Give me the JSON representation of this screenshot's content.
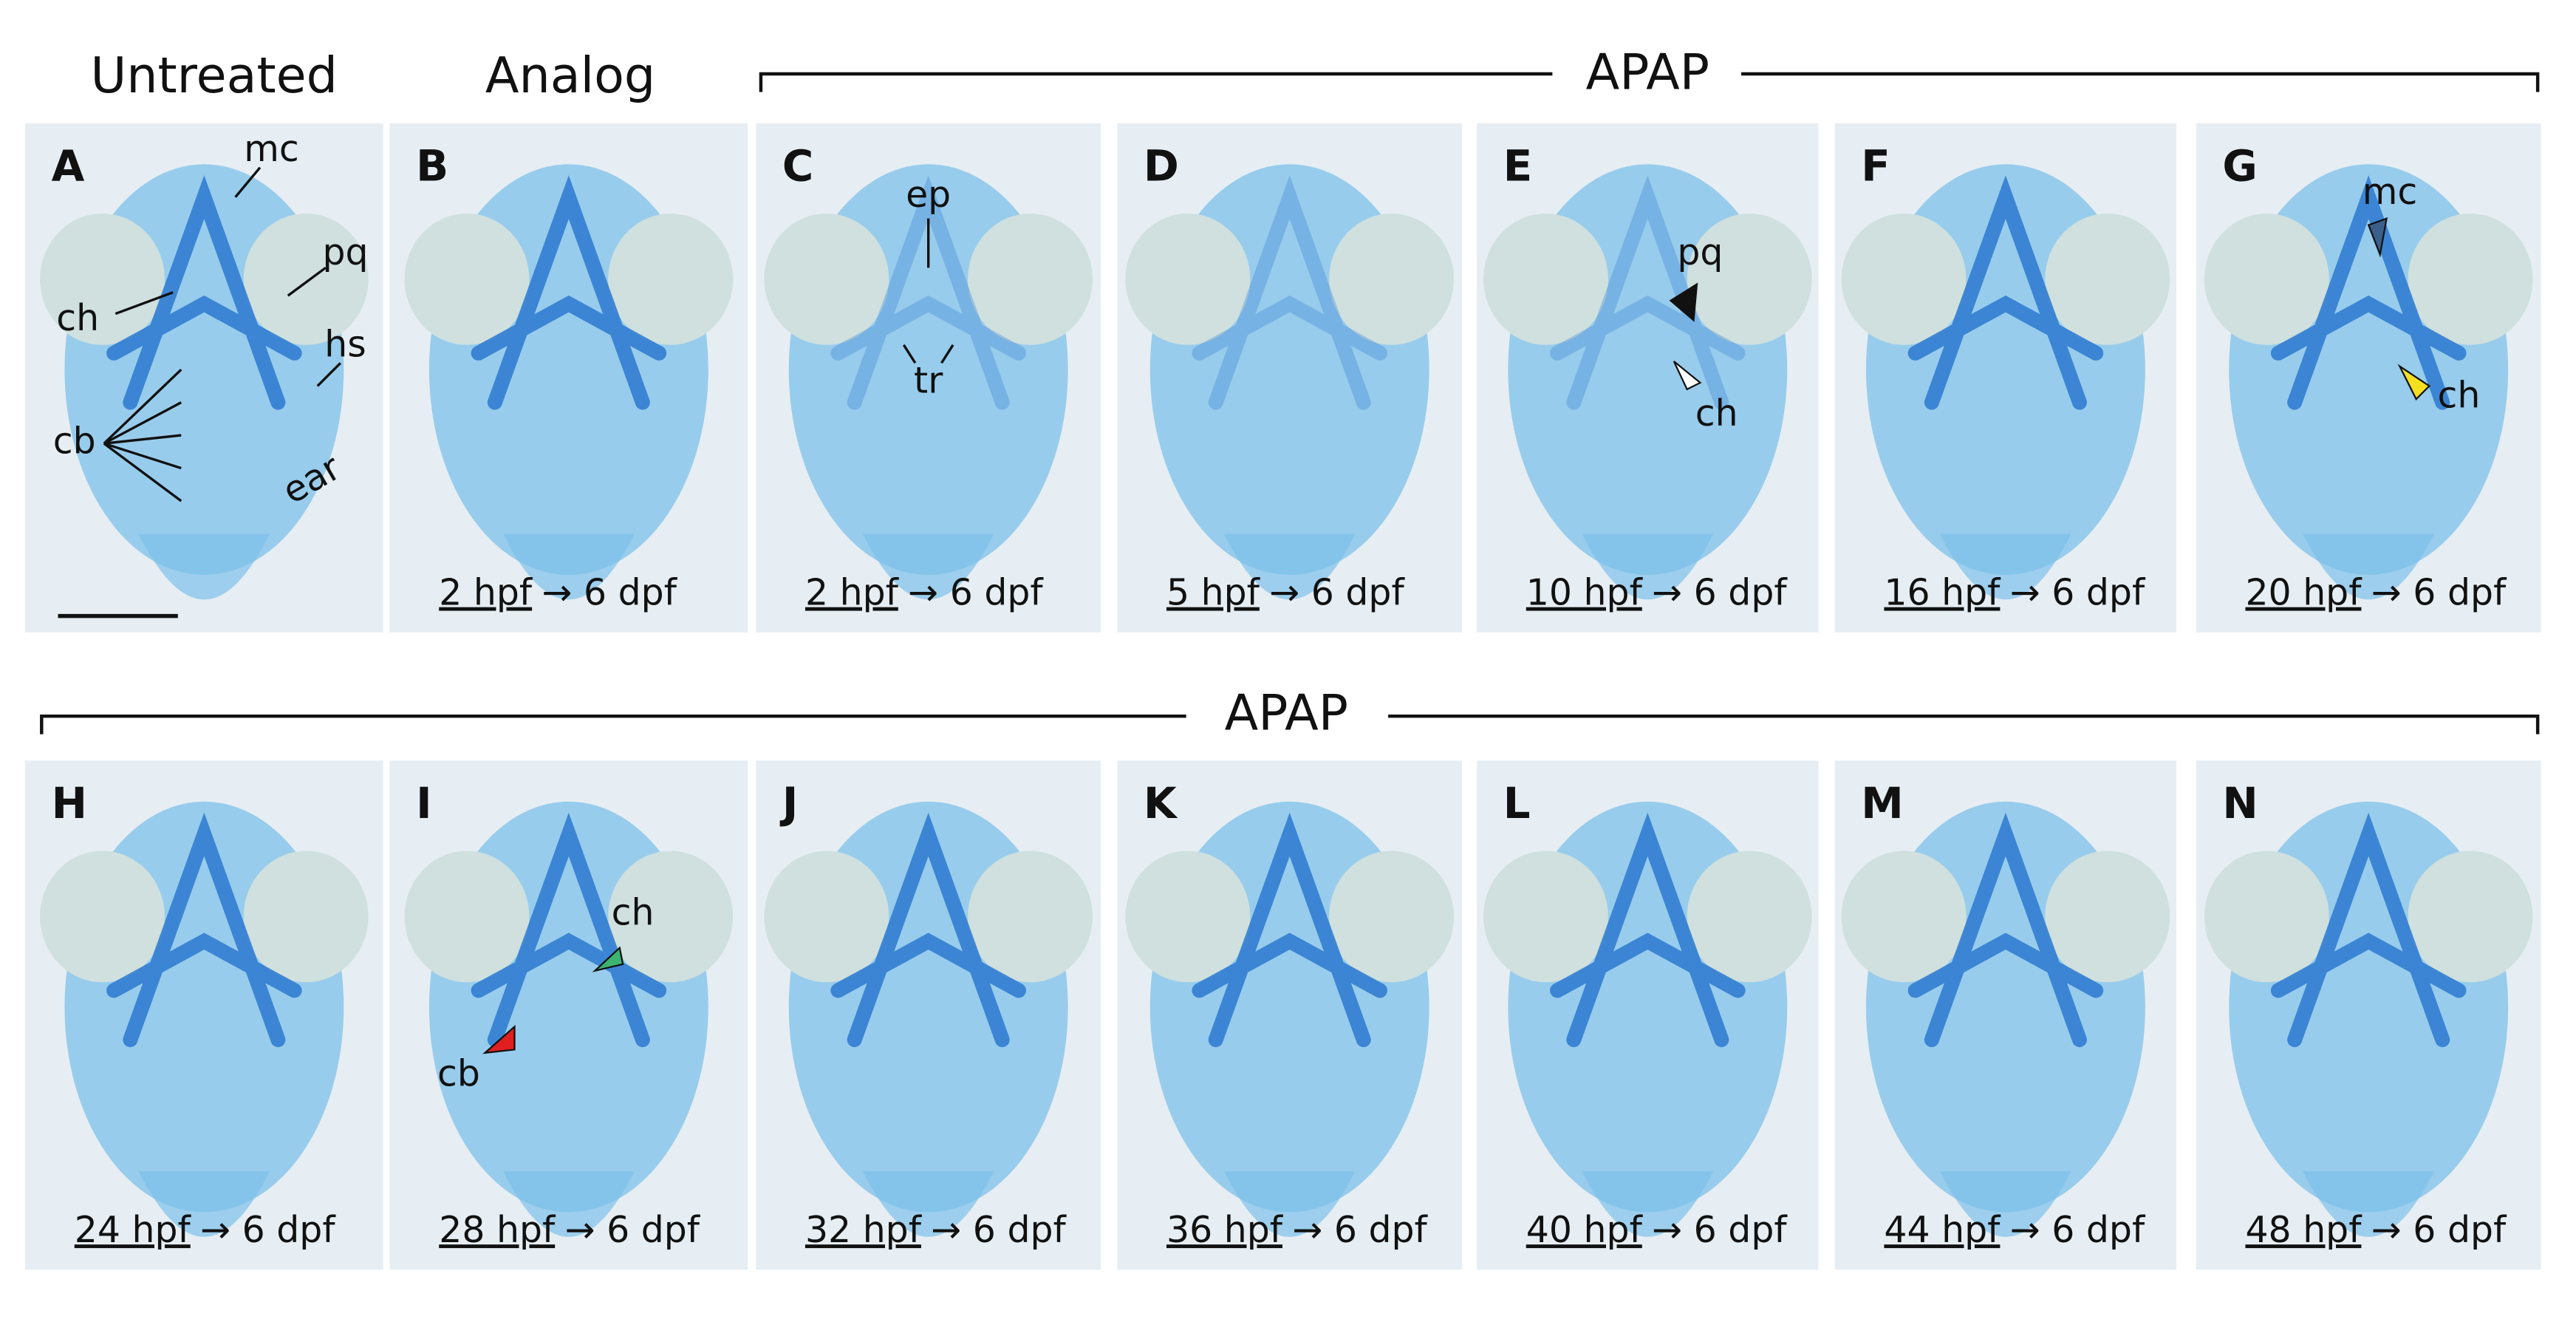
{
  "headers": {
    "untreated": "Untreated",
    "analog": "Analog",
    "apap_top": "APAP",
    "apap_bottom": "APAP"
  },
  "panels": [
    {
      "letter": "A",
      "annotations": [
        "mc",
        "pq",
        "ch",
        "hs",
        "cb",
        "ear"
      ]
    },
    {
      "letter": "B",
      "caption": {
        "time": "2 hpf",
        "rest": "→ 6 dpf"
      }
    },
    {
      "letter": "C",
      "annotations": [
        "ep",
        "tr"
      ],
      "caption": {
        "time": "2 hpf",
        "rest": "→ 6 dpf"
      }
    },
    {
      "letter": "D",
      "caption": {
        "time": "5 hpf",
        "rest": "→ 6 dpf"
      }
    },
    {
      "letter": "E",
      "annotations": [
        "pq",
        "ch"
      ],
      "caption": {
        "time": "10 hpf",
        "rest": "→ 6 dpf"
      }
    },
    {
      "letter": "F",
      "caption": {
        "time": "16 hpf",
        "rest": "→ 6 dpf"
      }
    },
    {
      "letter": "G",
      "annotations": [
        "mc",
        "ch"
      ],
      "caption": {
        "time": "20 hpf",
        "rest": "→ 6 dpf"
      }
    },
    {
      "letter": "H",
      "caption": {
        "time": "24 hpf",
        "rest": "→ 6 dpf"
      }
    },
    {
      "letter": "I",
      "annotations": [
        "ch",
        "cb"
      ],
      "caption": {
        "time": "28 hpf",
        "rest": "→ 6 dpf"
      }
    },
    {
      "letter": "J",
      "caption": {
        "time": "32 hpf",
        "rest": "→ 6 dpf"
      }
    },
    {
      "letter": "K",
      "caption": {
        "time": "36 hpf",
        "rest": "→ 6 dpf"
      }
    },
    {
      "letter": "L",
      "caption": {
        "time": "40 hpf",
        "rest": "→ 6 dpf"
      }
    },
    {
      "letter": "M",
      "caption": {
        "time": "44 hpf",
        "rest": "→ 6 dpf"
      }
    },
    {
      "letter": "N",
      "caption": {
        "time": "48 hpf",
        "rest": "→ 6 dpf"
      }
    }
  ]
}
